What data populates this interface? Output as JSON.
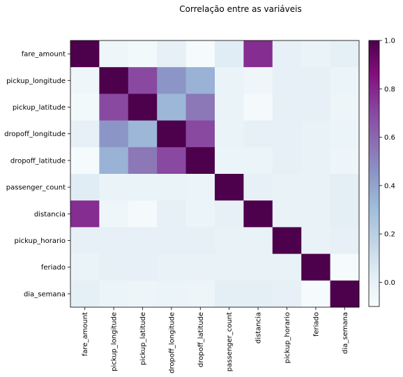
{
  "chart_data": {
    "type": "heatmap",
    "title": "Correlação entre as variáveis",
    "xlabel": "",
    "ylabel": "",
    "labels": [
      "fare_amount",
      "pickup_longitude",
      "pickup_latitude",
      "dropoff_longitude",
      "dropoff_latitude",
      "passenger_count",
      "distancia",
      "pickup_horario",
      "feriado",
      "dia_semana"
    ],
    "matrix": [
      [
        1.0,
        -0.05,
        -0.07,
        0.0,
        -0.09,
        0.03,
        0.78,
        0.0,
        -0.02,
        0.01
      ],
      [
        -0.05,
        1.0,
        0.7,
        0.45,
        0.35,
        -0.02,
        -0.05,
        0.0,
        0.0,
        -0.03
      ],
      [
        -0.07,
        0.7,
        1.0,
        0.33,
        0.55,
        -0.02,
        -0.08,
        0.0,
        0.0,
        -0.04
      ],
      [
        0.0,
        0.45,
        0.33,
        1.0,
        0.7,
        -0.02,
        0.0,
        0.0,
        -0.01,
        -0.03
      ],
      [
        -0.09,
        0.35,
        0.55,
        0.7,
        1.0,
        -0.03,
        -0.03,
        0.0,
        -0.01,
        -0.04
      ],
      [
        0.03,
        -0.02,
        -0.02,
        -0.02,
        -0.03,
        1.0,
        0.0,
        -0.01,
        -0.01,
        0.02
      ],
      [
        0.78,
        -0.05,
        -0.08,
        0.0,
        -0.03,
        0.0,
        1.0,
        -0.01,
        -0.01,
        0.02
      ],
      [
        0.0,
        0.0,
        0.0,
        0.0,
        0.0,
        -0.01,
        -0.01,
        1.0,
        -0.01,
        0.0
      ],
      [
        -0.02,
        0.0,
        0.0,
        -0.01,
        -0.01,
        -0.01,
        -0.01,
        -0.01,
        1.0,
        -0.09
      ],
      [
        0.01,
        -0.03,
        -0.04,
        -0.03,
        -0.04,
        0.02,
        0.02,
        0.0,
        -0.09,
        1.0
      ]
    ],
    "colorbar": {
      "min": -0.1,
      "max": 1.0,
      "ticks": [
        0.0,
        0.2,
        0.4,
        0.6,
        0.8,
        1.0
      ],
      "tick_labels": [
        "0.0",
        "0.2",
        "0.4",
        "0.6",
        "0.8",
        "1.0"
      ],
      "colormap": "BuPu",
      "colormap_stops": [
        "#f7fcfd",
        "#e0ecf4",
        "#bfd3e6",
        "#9ebcda",
        "#8c96c6",
        "#8c6bb1",
        "#88419d",
        "#810f7c",
        "#4d004b"
      ]
    },
    "grid": false,
    "legend": "colorbar-right"
  }
}
